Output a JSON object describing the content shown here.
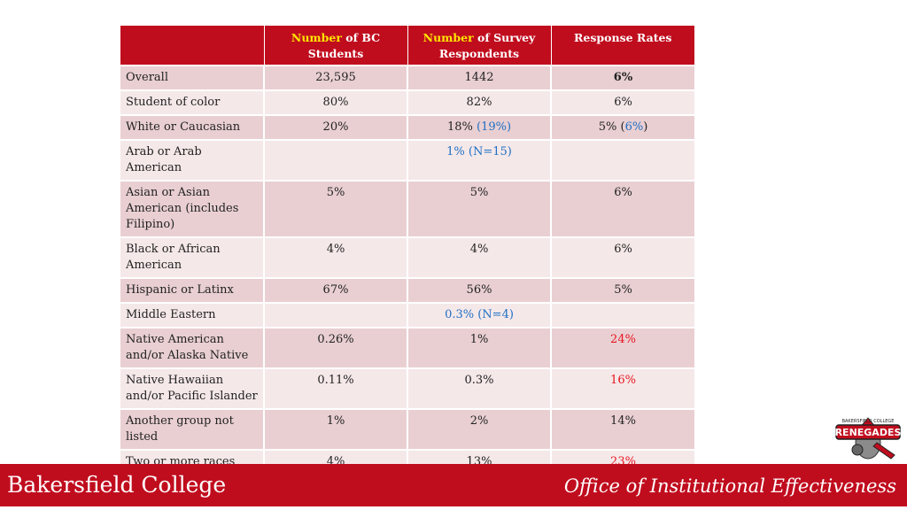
{
  "table": {
    "headers": [
      {
        "highlight": "",
        "rest": ""
      },
      {
        "highlight": "Number",
        "rest": " of BC Students"
      },
      {
        "highlight": "Number",
        "rest": " of Survey Respondents"
      },
      {
        "highlight": "",
        "rest": "Response Rates"
      }
    ],
    "rows": [
      {
        "label": "Overall",
        "students": "23,595",
        "respondents": "1442",
        "respondents_extra": "",
        "rate": "6%",
        "rate_extra": "",
        "rate_style": "bold"
      },
      {
        "label": "Student of color",
        "students": "80%",
        "respondents": "82%",
        "respondents_extra": "",
        "rate": "6%",
        "rate_extra": "",
        "rate_style": ""
      },
      {
        "label": "White or Caucasian",
        "students": "20%",
        "respondents": "18%",
        "respondents_extra": "(19%)",
        "rate": "5% (",
        "rate_extra": "6%",
        "rate_close": ")",
        "rate_style": ""
      },
      {
        "label": "Arab or Arab American",
        "students": "",
        "respondents": "",
        "respondents_extra": "1% (N=15)",
        "rate": "",
        "rate_extra": "",
        "rate_style": ""
      },
      {
        "label": "Asian or Asian American (includes Filipino)",
        "students": "5%",
        "respondents": "5%",
        "respondents_extra": "",
        "rate": "6%",
        "rate_extra": "",
        "rate_style": ""
      },
      {
        "label": "Black or African American",
        "students": "4%",
        "respondents": "4%",
        "respondents_extra": "",
        "rate": "6%",
        "rate_extra": "",
        "rate_style": ""
      },
      {
        "label": "Hispanic or Latinx",
        "students": "67%",
        "respondents": "56%",
        "respondents_extra": "",
        "rate": "5%",
        "rate_extra": "",
        "rate_style": ""
      },
      {
        "label": "Middle Eastern",
        "students": "",
        "respondents": "",
        "respondents_extra": "0.3% (N=4)",
        "rate": "",
        "rate_extra": "",
        "rate_style": ""
      },
      {
        "label": "Native American and/or Alaska Native",
        "students": "0.26%",
        "respondents": "1%",
        "respondents_extra": "",
        "rate": "24%",
        "rate_extra": "",
        "rate_style": "red"
      },
      {
        "label": "Native Hawaiian and/or Pacific Islander",
        "students": "0.11%",
        "respondents": "0.3%",
        "respondents_extra": "",
        "rate": "16%",
        "rate_extra": "",
        "rate_style": "red"
      },
      {
        "label": "Another group not listed",
        "students": "1%",
        "respondents": "2%",
        "respondents_extra": "",
        "rate": "14%",
        "rate_extra": "",
        "rate_style": ""
      },
      {
        "label": "Two or more races",
        "students": "4%",
        "respondents": "13%",
        "respondents_extra": "",
        "rate": "23%",
        "rate_extra": "",
        "rate_style": "red"
      }
    ]
  },
  "footer": {
    "left": "Bakersfield College",
    "right": "Office of Institutional Effectiveness"
  },
  "logo": {
    "text_top": "BAKERSFIELD COLLEGE",
    "text_main": "RENEGADES"
  },
  "colors": {
    "brand_red": "#c00d1e",
    "highlight_yellow": "#ffe600",
    "note_blue": "#1f6fc4",
    "alert_red": "#e8141e"
  }
}
